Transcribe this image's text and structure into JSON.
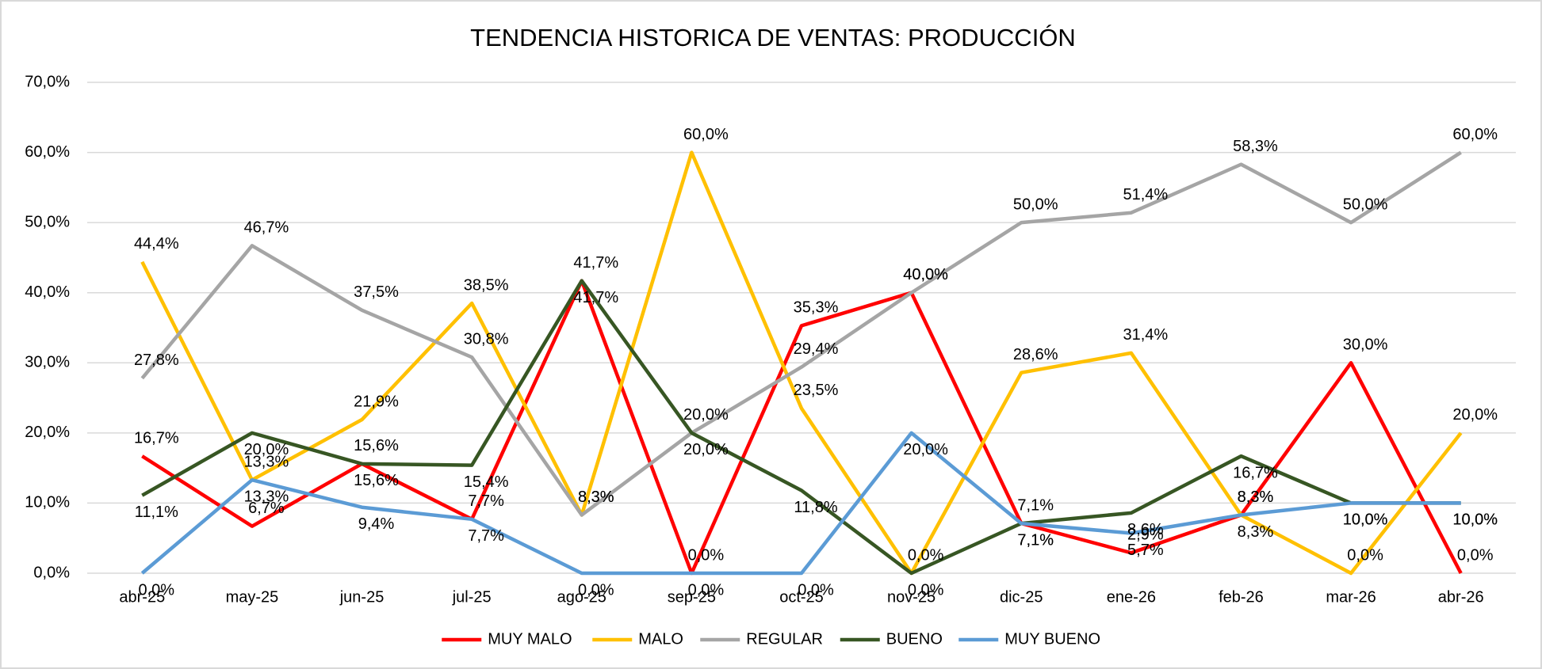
{
  "chart_data": {
    "type": "line",
    "title": "TENDENCIA HISTORICA DE VENTAS: PRODUCCIÓN",
    "categories": [
      "abr-25",
      "may-25",
      "jun-25",
      "jul-25",
      "ago-25",
      "sep-25",
      "oct-25",
      "nov-25",
      "dic-25",
      "ene-26",
      "feb-26",
      "mar-26",
      "abr-26"
    ],
    "ylim": [
      0,
      70
    ],
    "yticks": [
      {
        "value": 0,
        "label": "0,0%"
      },
      {
        "value": 10,
        "label": "10,0%"
      },
      {
        "value": 20,
        "label": "20,0%"
      },
      {
        "value": 30,
        "label": "30,0%"
      },
      {
        "value": 40,
        "label": "40,0%"
      },
      {
        "value": 50,
        "label": "50,0%"
      },
      {
        "value": 60,
        "label": "60,0%"
      },
      {
        "value": 70,
        "label": "70,0%"
      }
    ],
    "grid": true,
    "legend": "bottom",
    "series": [
      {
        "name": "MUY MALO",
        "color": "#ff0000",
        "values": [
          16.7,
          6.7,
          15.6,
          7.7,
          41.7,
          0.0,
          35.3,
          40.0,
          7.1,
          2.9,
          8.3,
          30.0,
          0.0
        ],
        "value_labels": [
          "16,7%",
          "6,7%",
          "15,6%",
          "7,7%",
          "41,7%",
          "0,0%",
          "35,3%",
          "40,0%",
          "7,1%",
          "2,9%",
          "8,3%",
          "30,0%",
          "0,0%"
        ]
      },
      {
        "name": "MALO",
        "color": "#ffc000",
        "values": [
          44.4,
          13.3,
          21.9,
          38.5,
          8.3,
          60.0,
          23.5,
          0.0,
          28.6,
          31.4,
          8.3,
          0.0,
          20.0
        ],
        "value_labels": [
          "44,4%",
          "13,3%",
          "21,9%",
          "38,5%",
          "8,3%",
          "60,0%",
          "23,5%",
          "0,0%",
          "28,6%",
          "31,4%",
          "8,3%",
          "0,0%",
          "20,0%"
        ]
      },
      {
        "name": "REGULAR",
        "color": "#a5a5a5",
        "values": [
          27.8,
          46.7,
          37.5,
          30.8,
          8.3,
          20.0,
          29.4,
          40.0,
          50.0,
          51.4,
          58.3,
          50.0,
          60.0
        ],
        "value_labels": [
          "27,8%",
          "46,7%",
          "37,5%",
          "30,8%",
          "8,3%",
          "20,0%",
          "29,4%",
          "40,0%",
          "50,0%",
          "51,4%",
          "58,3%",
          "50,0%",
          "60,0%"
        ]
      },
      {
        "name": "BUENO",
        "color": "#375623",
        "values": [
          11.1,
          20.0,
          15.6,
          15.4,
          41.7,
          20.0,
          11.8,
          0.0,
          7.1,
          8.6,
          16.7,
          10.0,
          10.0
        ],
        "value_labels": [
          "11,1%",
          "20,0%",
          "15,6%",
          "15,4%",
          "41,7%",
          "20,0%",
          "11,8%",
          "0,0%",
          "7,1%",
          "8,6%",
          "16,7%",
          "10,0%",
          "10,0%"
        ]
      },
      {
        "name": "MUY BUENO",
        "color": "#5b9bd5",
        "values": [
          0.0,
          13.3,
          9.4,
          7.7,
          0.0,
          0.0,
          0.0,
          20.0,
          7.1,
          5.7,
          8.3,
          10.0,
          10.0
        ],
        "value_labels": [
          "0,0%",
          "13,3%",
          "9,4%",
          "7,7%",
          "0,0%",
          "0,0%",
          "0,0%",
          "20,0%",
          "7,1%",
          "5,7%",
          "8,3%",
          "10,0%",
          "10,0%"
        ]
      }
    ]
  }
}
